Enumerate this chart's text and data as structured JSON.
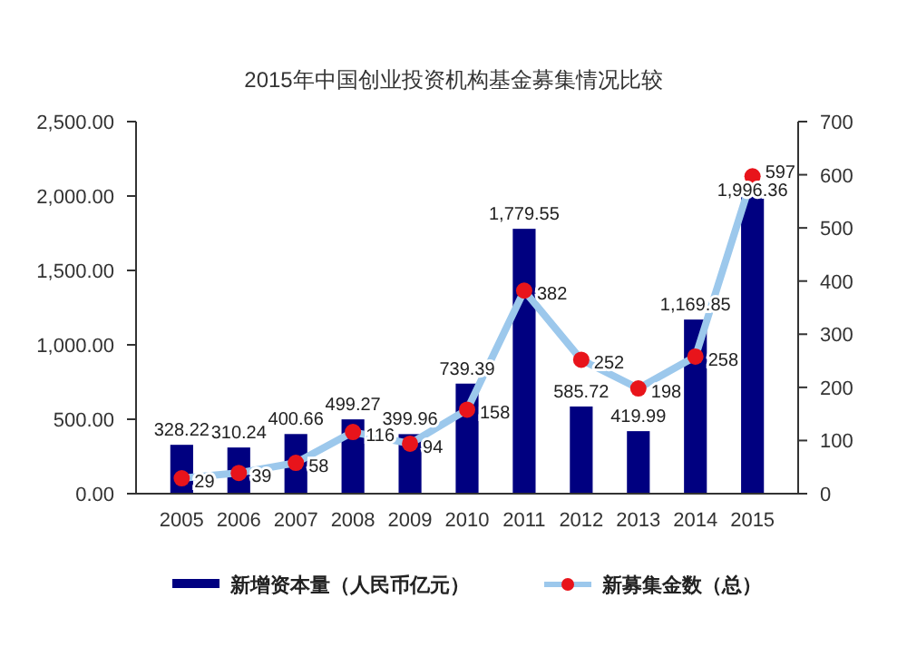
{
  "chart_data": {
    "type": "bar",
    "title": "2015年中国创业投资机构基金募集情况比较",
    "categories": [
      "2005",
      "2006",
      "2007",
      "2008",
      "2009",
      "2010",
      "2011",
      "2012",
      "2013",
      "2014",
      "2015"
    ],
    "series": [
      {
        "name": "新增资本量（人民币亿元）",
        "type": "bar",
        "color": "#000080",
        "values": [
          328.22,
          310.24,
          400.66,
          499.27,
          399.96,
          739.39,
          1779.55,
          585.72,
          419.99,
          1169.85,
          1996.36
        ],
        "value_labels": [
          "328.22",
          "310.24",
          "400.66",
          "499.27",
          "399.96",
          "739.39",
          "1,779.55",
          "585.72",
          "419.99",
          "1,169.85",
          "1,996.36"
        ]
      },
      {
        "name": "新募集金数（总）",
        "type": "line",
        "axis": "y2",
        "color": "#9cc8ec",
        "marker": "circle",
        "values": [
          29,
          39,
          58,
          116,
          94,
          158,
          382,
          252,
          198,
          258,
          597
        ]
      }
    ],
    "ylim": [
      0,
      2500
    ],
    "yticks": [
      {
        "value": 0,
        "label": "0.00"
      },
      {
        "value": 500,
        "label": "500.00"
      },
      {
        "value": 1000,
        "label": "1,000.00"
      },
      {
        "value": 1500,
        "label": "1,500.00"
      },
      {
        "value": 2000,
        "label": "2,000.00"
      },
      {
        "value": 2500,
        "label": "2,500.00"
      }
    ],
    "y2lim": [
      0,
      700
    ],
    "y2ticks": [
      0,
      100,
      200,
      300,
      400,
      500,
      600,
      700
    ],
    "data_labels": true,
    "legend": "bottom",
    "grid": false
  }
}
